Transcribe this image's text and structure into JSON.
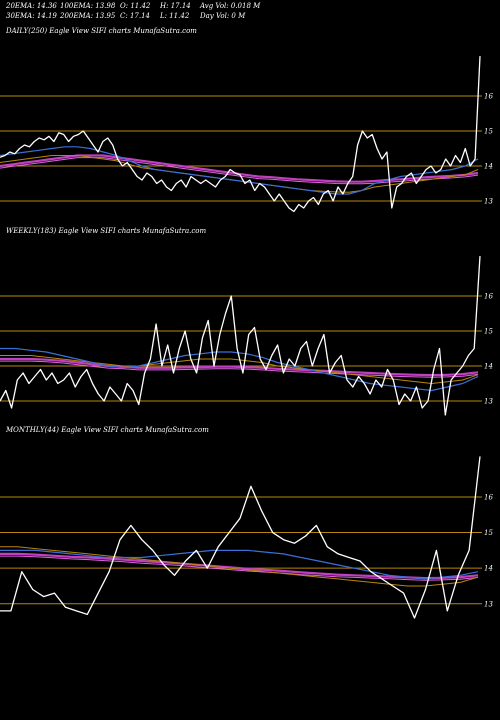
{
  "header": {
    "row1": [
      "20EMA: 14.36",
      "100EMA: 13.98",
      "O: 11.42",
      "H: 17.14",
      "Avg Vol: 0.018 M"
    ],
    "row2": [
      "30EMA: 14.19",
      "200EMA: 13.95",
      "C: 17.14",
      "L: 11.42",
      "Day Vol: 0  M"
    ]
  },
  "colors": {
    "background": "#000000",
    "price": "#ffffff",
    "level_lines": "#b8860b",
    "ema_short": "#3a6fd8",
    "ema_mid": "#b8860b",
    "ema_long_a": "#c040c0",
    "ema_long_b": "#e060e0"
  },
  "chart_data": [
    {
      "type": "line",
      "title": "DAILY(250) Eagle  View  SIFI charts MunafaSutra.com",
      "levels": [
        16,
        15,
        14,
        13
      ],
      "y_tick_labels": [
        "16",
        "15",
        "14",
        "13"
      ],
      "ylim": [
        12.6,
        17.6
      ],
      "price": [
        14.25,
        14.3,
        14.4,
        14.35,
        14.5,
        14.6,
        14.55,
        14.7,
        14.8,
        14.75,
        14.85,
        14.7,
        14.95,
        14.9,
        14.7,
        14.85,
        14.9,
        15.0,
        14.8,
        14.6,
        14.4,
        14.7,
        14.8,
        14.6,
        14.2,
        14.0,
        14.1,
        13.9,
        13.7,
        13.6,
        13.8,
        13.7,
        13.5,
        13.6,
        13.4,
        13.3,
        13.5,
        13.6,
        13.4,
        13.7,
        13.6,
        13.5,
        13.6,
        13.5,
        13.4,
        13.6,
        13.7,
        13.9,
        13.8,
        13.75,
        13.5,
        13.6,
        13.3,
        13.5,
        13.4,
        13.2,
        13.0,
        13.2,
        13.0,
        12.8,
        12.7,
        12.9,
        12.8,
        13.0,
        13.1,
        12.9,
        13.2,
        13.3,
        13.0,
        13.4,
        13.2,
        13.5,
        13.7,
        14.6,
        15.0,
        14.8,
        14.9,
        14.5,
        14.2,
        14.4,
        12.8,
        13.4,
        13.5,
        13.7,
        13.8,
        13.5,
        13.7,
        13.9,
        14.0,
        13.8,
        13.9,
        14.2,
        14.0,
        14.3,
        14.1,
        14.5,
        14.0,
        14.2,
        17.14
      ],
      "ema_short": [
        14.3,
        14.35,
        14.4,
        14.45,
        14.5,
        14.55,
        14.55,
        14.5,
        14.4,
        14.3,
        14.15,
        14.0,
        13.9,
        13.85,
        13.8,
        13.75,
        13.7,
        13.65,
        13.6,
        13.55,
        13.5,
        13.45,
        13.4,
        13.35,
        13.3,
        13.25,
        13.2,
        13.2,
        13.3,
        13.5,
        13.6,
        13.7,
        13.75,
        13.8,
        13.85,
        13.9,
        14.0,
        14.2
      ],
      "ema_mid": [
        14.1,
        14.15,
        14.2,
        14.25,
        14.3,
        14.3,
        14.3,
        14.25,
        14.2,
        14.15,
        14.05,
        13.95,
        13.9,
        13.85,
        13.8,
        13.75,
        13.7,
        13.65,
        13.6,
        13.55,
        13.5,
        13.45,
        13.4,
        13.35,
        13.3,
        13.28,
        13.26,
        13.25,
        13.3,
        13.4,
        13.45,
        13.5,
        13.55,
        13.6,
        13.65,
        13.7,
        13.75,
        13.9
      ],
      "ema_long": [
        14.0,
        14.05,
        14.1,
        14.15,
        14.2,
        14.25,
        14.3,
        14.3,
        14.3,
        14.25,
        14.2,
        14.15,
        14.1,
        14.05,
        14.0,
        13.95,
        13.9,
        13.85,
        13.8,
        13.75,
        13.7,
        13.68,
        13.65,
        13.62,
        13.6,
        13.58,
        13.56,
        13.55,
        13.55,
        13.57,
        13.6,
        13.62,
        13.65,
        13.68,
        13.7,
        13.72,
        13.75,
        13.8
      ]
    },
    {
      "type": "line",
      "title": "WEEKLY(183) Eagle  View  SIFI charts MunafaSutra.com",
      "levels": [
        16,
        15,
        14,
        13
      ],
      "y_tick_labels": [
        "16",
        "15",
        "14",
        "13"
      ],
      "ylim": [
        12.6,
        17.6
      ],
      "price": [
        13.0,
        13.3,
        12.8,
        13.6,
        13.8,
        13.5,
        13.7,
        13.9,
        13.6,
        13.8,
        13.5,
        13.6,
        13.8,
        13.4,
        13.7,
        13.9,
        13.5,
        13.2,
        13.0,
        13.4,
        13.2,
        13.0,
        13.5,
        13.3,
        12.9,
        13.8,
        14.2,
        15.2,
        14.0,
        14.6,
        13.8,
        14.5,
        15.0,
        14.2,
        13.8,
        14.8,
        15.3,
        14.0,
        14.9,
        15.5,
        16.0,
        14.5,
        13.8,
        14.9,
        15.1,
        14.2,
        13.9,
        14.3,
        14.6,
        13.8,
        14.2,
        14.0,
        14.5,
        14.7,
        14.0,
        14.5,
        14.9,
        13.8,
        14.1,
        14.3,
        13.6,
        13.4,
        13.7,
        13.5,
        13.2,
        13.6,
        13.4,
        13.9,
        13.6,
        12.9,
        13.2,
        13.0,
        13.4,
        12.8,
        13.0,
        13.9,
        14.5,
        12.6,
        13.6,
        13.8,
        14.0,
        14.3,
        14.5,
        17.14
      ],
      "ema_short": [
        14.5,
        14.5,
        14.45,
        14.4,
        14.3,
        14.2,
        14.1,
        14.0,
        13.95,
        14.0,
        14.1,
        14.2,
        14.3,
        14.35,
        14.4,
        14.4,
        14.35,
        14.25,
        14.1,
        14.0,
        13.9,
        13.8,
        13.7,
        13.6,
        13.5,
        13.45,
        13.4,
        13.35,
        13.3,
        13.4,
        13.5,
        13.7
      ],
      "ema_mid": [
        14.3,
        14.3,
        14.3,
        14.25,
        14.2,
        14.15,
        14.1,
        14.05,
        14.0,
        14.0,
        14.05,
        14.1,
        14.15,
        14.2,
        14.2,
        14.2,
        14.15,
        14.1,
        14.0,
        13.95,
        13.9,
        13.85,
        13.8,
        13.75,
        13.7,
        13.65,
        13.6,
        13.55,
        13.5,
        13.55,
        13.6,
        13.75
      ],
      "ema_long": [
        14.2,
        14.2,
        14.2,
        14.18,
        14.15,
        14.1,
        14.05,
        14.0,
        13.98,
        13.95,
        13.95,
        13.95,
        13.96,
        13.97,
        13.98,
        13.98,
        13.97,
        13.95,
        13.92,
        13.9,
        13.88,
        13.86,
        13.84,
        13.82,
        13.8,
        13.78,
        13.76,
        13.75,
        13.74,
        13.75,
        13.77,
        13.82
      ]
    },
    {
      "type": "line",
      "title": "MONTHLY(44) Eagle  View  SIFI charts MunafaSutra.com",
      "levels": [
        16,
        15,
        14,
        13
      ],
      "y_tick_labels": [
        "16",
        "15",
        "14",
        "13"
      ],
      "ylim": [
        12.6,
        17.6
      ],
      "price": [
        12.8,
        12.8,
        13.9,
        13.4,
        13.2,
        13.3,
        12.9,
        12.8,
        12.7,
        13.3,
        13.9,
        14.8,
        15.2,
        14.8,
        14.5,
        14.1,
        13.8,
        14.2,
        14.5,
        14.0,
        14.6,
        15.0,
        15.4,
        16.3,
        15.6,
        15.0,
        14.8,
        14.7,
        14.9,
        15.2,
        14.6,
        14.4,
        14.3,
        14.2,
        13.9,
        13.7,
        13.5,
        13.3,
        12.6,
        13.4,
        14.5,
        12.8,
        13.8,
        14.5,
        17.14
      ],
      "ema_short": [
        14.5,
        14.5,
        14.5,
        14.45,
        14.4,
        14.35,
        14.3,
        14.3,
        14.3,
        14.35,
        14.4,
        14.45,
        14.5,
        14.5,
        14.5,
        14.45,
        14.4,
        14.3,
        14.2,
        14.1,
        14.0,
        13.9,
        13.8,
        13.75,
        13.7,
        13.75,
        13.8,
        13.9
      ],
      "ema_mid": [
        14.6,
        14.6,
        14.55,
        14.5,
        14.45,
        14.4,
        14.35,
        14.3,
        14.25,
        14.2,
        14.15,
        14.1,
        14.05,
        14.0,
        13.95,
        13.9,
        13.85,
        13.8,
        13.75,
        13.7,
        13.65,
        13.6,
        13.55,
        13.5,
        13.5,
        13.55,
        13.6,
        13.75
      ],
      "ema_long": [
        14.4,
        14.4,
        14.38,
        14.35,
        14.32,
        14.3,
        14.27,
        14.24,
        14.2,
        14.17,
        14.14,
        14.1,
        14.06,
        14.02,
        13.98,
        13.95,
        13.92,
        13.88,
        13.85,
        13.82,
        13.8,
        13.78,
        13.76,
        13.74,
        13.72,
        13.73,
        13.75,
        13.8
      ]
    }
  ]
}
